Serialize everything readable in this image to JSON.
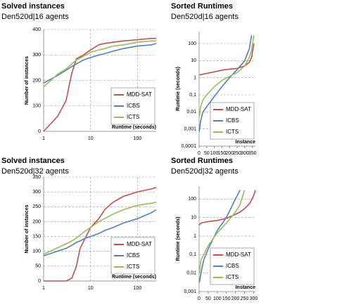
{
  "chart_data": [
    {
      "type": "line",
      "title": "Solved instances",
      "subtitle": "Den520d|16 agents",
      "x_label": "Runtime (seconds)",
      "y_label": "Number of instances",
      "x": [
        1,
        2,
        3,
        4,
        5,
        7,
        10,
        15,
        20,
        30,
        50,
        100,
        200,
        250
      ],
      "series": [
        {
          "name": "MDD-SAT",
          "color": "#c0504d",
          "values": [
            0,
            60,
            120,
            230,
            285,
            300,
            320,
            340,
            345,
            350,
            355,
            360,
            365,
            365
          ]
        },
        {
          "name": "ICBS",
          "color": "#4f81bd",
          "values": [
            190,
            220,
            240,
            255,
            265,
            280,
            290,
            300,
            305,
            315,
            325,
            335,
            340,
            345
          ]
        },
        {
          "name": "ICTS",
          "color": "#9bbb59",
          "values": [
            175,
            225,
            245,
            265,
            280,
            295,
            310,
            320,
            325,
            335,
            340,
            350,
            355,
            355
          ]
        }
      ],
      "xscale": "log",
      "xlim": [
        1,
        250
      ],
      "xticks": [
        1,
        10,
        100
      ],
      "ylim": [
        0,
        400
      ],
      "yticks": [
        0,
        100,
        200,
        300,
        400
      ],
      "grid": true,
      "legend": "lower right"
    },
    {
      "type": "line",
      "title": "Sorted Runtimes",
      "subtitle": "Den520d|16 agents",
      "x_label": "Instance",
      "y_label": "Runtime (seconds)",
      "x": [
        1,
        10,
        25,
        50,
        100,
        150,
        200,
        250,
        300,
        330,
        345,
        360
      ],
      "series": [
        {
          "name": "MDD-SAT",
          "color": "#c0504d",
          "values": [
            1.5,
            1.5,
            1.6,
            1.8,
            2.2,
            2.8,
            3.2,
            3.5,
            5,
            8,
            15,
            100
          ]
        },
        {
          "name": "ICBS",
          "color": "#4f81bd",
          "values": [
            0.0007,
            0.003,
            0.01,
            0.02,
            0.08,
            0.3,
            1,
            3,
            10,
            50,
            300,
            null
          ]
        },
        {
          "name": "ICTS",
          "color": "#9bbb59",
          "values": [
            0.005,
            0.02,
            0.05,
            0.1,
            0.3,
            0.7,
            1.2,
            2,
            5,
            15,
            40,
            300
          ]
        }
      ],
      "xlim": [
        0,
        370
      ],
      "xticks": [
        0,
        50,
        100,
        150,
        200,
        250,
        300,
        350
      ],
      "yscale": "log",
      "ylim": [
        0.0001,
        500
      ],
      "yticks": [
        {
          "value": 0.0001,
          "label": "0,0001"
        },
        {
          "value": 0.001,
          "label": "0,001"
        },
        {
          "value": 0.01,
          "label": "0,01"
        },
        {
          "value": 0.1,
          "label": "0,1"
        },
        1,
        10,
        100
      ],
      "grid": true,
      "legend": "lower right"
    },
    {
      "type": "line",
      "title": "Solved instances",
      "subtitle": "Den520d|32 agents",
      "x_label": "Runtime (seconds)",
      "y_label": "Number of instances",
      "x": [
        1,
        3,
        4,
        5,
        6,
        8,
        10,
        15,
        20,
        30,
        50,
        100,
        200,
        250
      ],
      "series": [
        {
          "name": "MDD-SAT",
          "color": "#c0504d",
          "values": [
            0,
            0,
            10,
            50,
            110,
            150,
            180,
            210,
            240,
            265,
            285,
            300,
            310,
            315
          ]
        },
        {
          "name": "ICBS",
          "color": "#4f81bd",
          "values": [
            85,
            110,
            120,
            130,
            135,
            145,
            150,
            160,
            170,
            180,
            195,
            210,
            230,
            240
          ]
        },
        {
          "name": "ICTS",
          "color": "#9bbb59",
          "values": [
            90,
            125,
            135,
            145,
            155,
            170,
            180,
            200,
            210,
            225,
            240,
            255,
            262,
            265
          ]
        }
      ],
      "xscale": "log",
      "xlim": [
        1,
        250
      ],
      "xticks": [
        1,
        10,
        100
      ],
      "ylim": [
        0,
        350
      ],
      "yticks": [
        0,
        50,
        100,
        150,
        200,
        250,
        300,
        350
      ],
      "grid": true,
      "legend": "lower right"
    },
    {
      "type": "line",
      "title": "Sorted Runtimes",
      "subtitle": "Den520d|32 agents",
      "x_label": "Instance",
      "y_label": "Runtime (seconds)",
      "x": [
        1,
        10,
        25,
        50,
        100,
        150,
        200,
        225,
        250,
        280,
        300,
        310
      ],
      "series": [
        {
          "name": "MDD-SAT",
          "color": "#c0504d",
          "values": [
            4,
            5,
            5.5,
            6,
            7,
            9,
            15,
            20,
            30,
            60,
            150,
            300
          ]
        },
        {
          "name": "ICBS",
          "color": "#4f81bd",
          "values": [
            0.003,
            0.01,
            0.05,
            0.2,
            2,
            10,
            100,
            300,
            null,
            null,
            null,
            null
          ]
        },
        {
          "name": "ICTS",
          "color": "#9bbb59",
          "values": [
            0.01,
            0.05,
            0.1,
            0.3,
            1.5,
            5,
            20,
            50,
            300,
            null,
            null,
            null
          ]
        }
      ],
      "xlim": [
        0,
        310
      ],
      "xticks": [
        0,
        50,
        100,
        150,
        200,
        250,
        300
      ],
      "yscale": "log",
      "ylim": [
        0.001,
        500
      ],
      "yticks": [
        {
          "value": 0.001,
          "label": "0,001"
        },
        {
          "value": 0.01,
          "label": "0,01"
        },
        {
          "value": 0.1,
          "label": "0,1"
        },
        1,
        10,
        100
      ],
      "grid": true,
      "legend": "lower right"
    }
  ]
}
